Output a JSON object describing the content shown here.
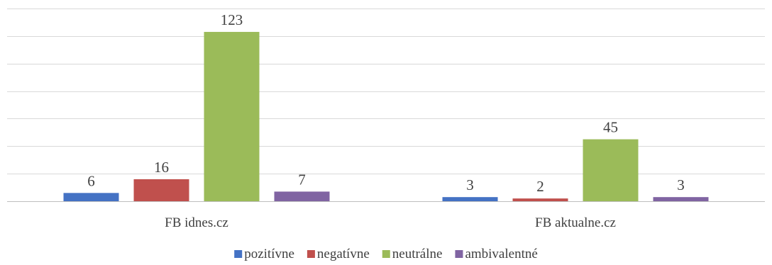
{
  "chart_data": {
    "type": "bar",
    "categories": [
      "FB idnes.cz",
      "FB aktualne.cz"
    ],
    "series": [
      {
        "name": "pozitívne",
        "values": [
          6,
          3
        ],
        "color": "#4472c4"
      },
      {
        "name": "negatívne",
        "values": [
          16,
          2
        ],
        "color": "#c0504d"
      },
      {
        "name": "neutrálne",
        "values": [
          123,
          45
        ],
        "color": "#9bbb59"
      },
      {
        "name": "ambivalentné",
        "values": [
          7,
          3
        ],
        "color": "#8064a2"
      }
    ],
    "ylim": [
      0,
      140
    ],
    "y_gridline_step": 20,
    "grid": true,
    "legend": "bottom",
    "gridline_color": "#d9d9d9",
    "text_color": "#404040"
  }
}
